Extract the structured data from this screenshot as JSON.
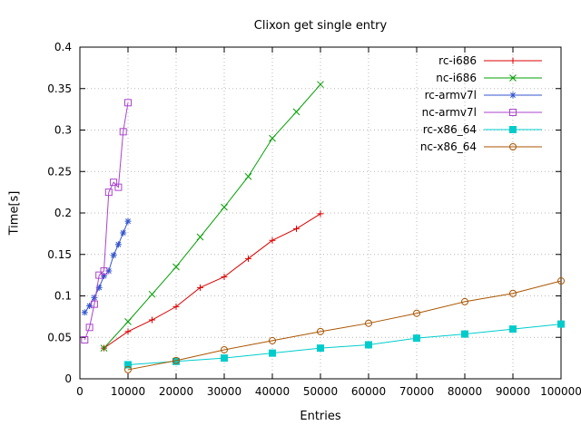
{
  "chart_data": {
    "type": "line",
    "title": "Clixon get single entry",
    "xlabel": "Entries",
    "ylabel": "Time[s]",
    "xlim": [
      0,
      100000
    ],
    "ylim": [
      0,
      0.4
    ],
    "xticks": [
      0,
      10000,
      20000,
      30000,
      40000,
      50000,
      60000,
      70000,
      80000,
      90000,
      100000
    ],
    "xtick_labels": [
      "0",
      "10000",
      "20000",
      "30000",
      "40000",
      "50000",
      "60000",
      "70000",
      "80000",
      "90000",
      "100000"
    ],
    "yticks": [
      0,
      0.05,
      0.1,
      0.15,
      0.2,
      0.25,
      0.3,
      0.35,
      0.4
    ],
    "ytick_labels": [
      "0",
      "0.05",
      "0.1",
      "0.15",
      "0.2",
      "0.25",
      "0.3",
      "0.35",
      "0.4"
    ],
    "grid": true,
    "grid_color": "#b8b8b8",
    "border_color": "#000000",
    "legend_position": "top-right-inside",
    "series": [
      {
        "name": "rc-i686",
        "color": "#dd0000",
        "marker": "plus",
        "x": [
          5000,
          10000,
          15000,
          20000,
          25000,
          30000,
          35000,
          40000,
          45000,
          50000
        ],
        "y": [
          0.037,
          0.057,
          0.071,
          0.087,
          0.11,
          0.123,
          0.145,
          0.167,
          0.181,
          0.199
        ]
      },
      {
        "name": "nc-i686",
        "color": "#00a000",
        "marker": "cross",
        "x": [
          5000,
          10000,
          15000,
          20000,
          25000,
          30000,
          35000,
          40000,
          45000,
          50000
        ],
        "y": [
          0.037,
          0.069,
          0.102,
          0.135,
          0.171,
          0.207,
          0.244,
          0.29,
          0.322,
          0.355
        ]
      },
      {
        "name": "rc-armv7l",
        "color": "#3355cc",
        "marker": "asterisk",
        "x": [
          1000,
          2000,
          3000,
          4000,
          5000,
          6000,
          7000,
          8000,
          9000,
          10000
        ],
        "y": [
          0.08,
          0.088,
          0.098,
          0.11,
          0.124,
          0.13,
          0.149,
          0.162,
          0.176,
          0.19
        ]
      },
      {
        "name": "nc-armv7l",
        "color": "#aa44cc",
        "marker": "square-open",
        "x": [
          1000,
          2000,
          3000,
          4000,
          5000,
          6000,
          7000,
          8000,
          9000,
          10000
        ],
        "y": [
          0.047,
          0.062,
          0.09,
          0.125,
          0.13,
          0.225,
          0.237,
          0.231,
          0.298,
          0.333
        ]
      },
      {
        "name": "rc-x86_64",
        "color": "#00cccc",
        "marker": "square-filled",
        "x": [
          10000,
          20000,
          30000,
          40000,
          50000,
          60000,
          70000,
          80000,
          90000,
          100000
        ],
        "y": [
          0.017,
          0.021,
          0.025,
          0.031,
          0.037,
          0.041,
          0.049,
          0.054,
          0.06,
          0.066
        ]
      },
      {
        "name": "nc-x86_64",
        "color": "#aa5500",
        "marker": "circle-open",
        "x": [
          10000,
          20000,
          30000,
          40000,
          50000,
          60000,
          70000,
          80000,
          90000,
          100000
        ],
        "y": [
          0.011,
          0.022,
          0.035,
          0.046,
          0.057,
          0.067,
          0.079,
          0.093,
          0.103,
          0.118
        ]
      }
    ]
  }
}
